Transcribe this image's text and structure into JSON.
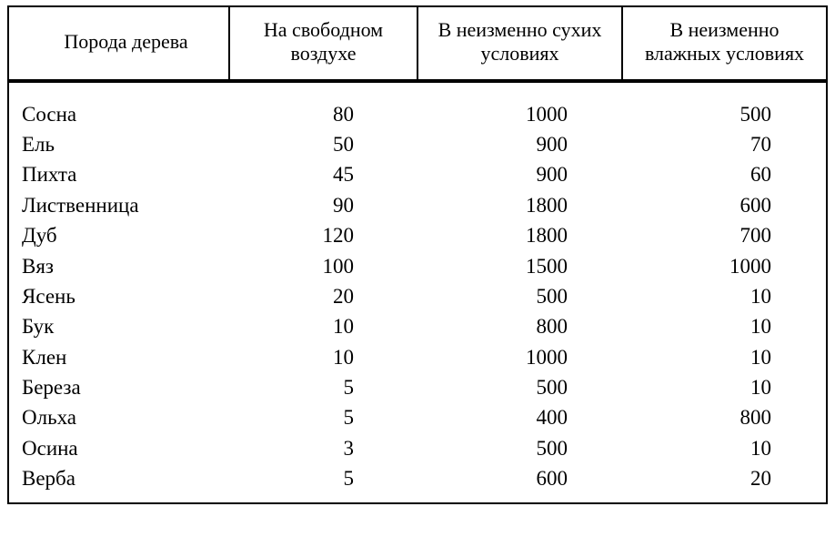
{
  "table": {
    "type": "table",
    "background_color": "#ffffff",
    "text_color": "#000000",
    "border_color": "#000000",
    "font_family": "Times New Roman",
    "header_fontsize": 22,
    "body_fontsize": 23,
    "outer_border_width": 2,
    "header_rule_width": 4,
    "column_widths": [
      0.27,
      0.23,
      0.25,
      0.25
    ],
    "columns": [
      "Порода дерева",
      "На свободном воздухе",
      "В неизменно сухих условиях",
      "В неизменно влажных усло­виях"
    ],
    "column_align": [
      "left",
      "right",
      "right",
      "right"
    ],
    "rows": [
      [
        "Сосна",
        "80",
        "1000",
        "500"
      ],
      [
        "Ель",
        "50",
        "900",
        "70"
      ],
      [
        "Пихта",
        "45",
        "900",
        "60"
      ],
      [
        "Лиственница",
        "90",
        "1800",
        "600"
      ],
      [
        "Дуб",
        "120",
        "1800",
        "700"
      ],
      [
        "Вяз",
        "100",
        "1500",
        "1000"
      ],
      [
        "Ясень",
        "20",
        "500",
        "10"
      ],
      [
        "Бук",
        "10",
        "800",
        "10"
      ],
      [
        "Клен",
        "10",
        "1000",
        "10"
      ],
      [
        "Береза",
        "5",
        "500",
        "10"
      ],
      [
        "Ольха",
        "5",
        "400",
        "800"
      ],
      [
        "Осина",
        "3",
        "500",
        "10"
      ],
      [
        "Верба",
        "5",
        "600",
        "20"
      ]
    ]
  }
}
